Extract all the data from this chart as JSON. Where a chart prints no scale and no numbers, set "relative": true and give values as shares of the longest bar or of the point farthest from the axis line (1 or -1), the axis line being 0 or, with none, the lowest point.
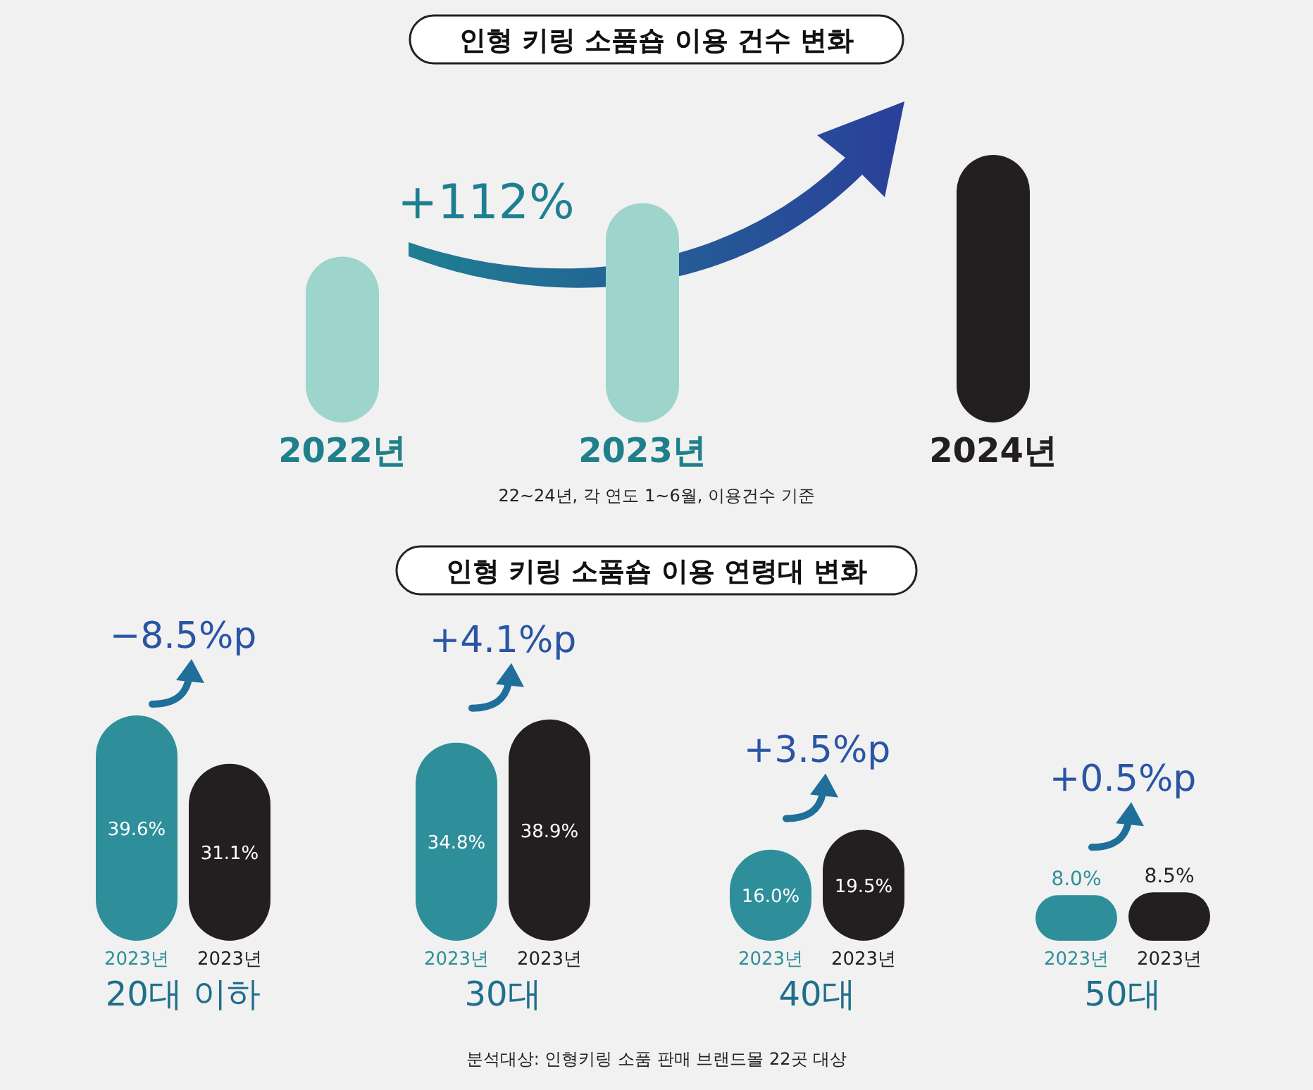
{
  "chart_data": [
    {
      "type": "bar",
      "title": "인형 키링 소품숍 이용 건수 변화",
      "relative": true,
      "categories": [
        "2022년",
        "2023년",
        "2024년"
      ],
      "values": [
        0.62,
        0.82,
        1
      ],
      "colors": [
        "#9dd4cc",
        "#9dd4cc",
        "#231f20"
      ],
      "annotations": [
        "+112%",
        "22~24년, 각 연도 1~6월, 이용건수 기준"
      ]
    },
    {
      "type": "bar",
      "title": "인형 키링 소품숍 이용 연령대 변화",
      "categories": [
        "20대 이하",
        "30대",
        "40대",
        "50대"
      ],
      "series": [
        {
          "name": "2023년",
          "color": "#2e8f9a",
          "values": [
            39.6,
            34.8,
            16.0,
            8.0
          ],
          "value_labels": [
            "39.6%",
            "34.8%",
            "16.0%",
            "8.0%"
          ]
        },
        {
          "name": "2023년",
          "color": "#231f20",
          "values": [
            31.1,
            38.9,
            19.5,
            8.5
          ],
          "value_labels": [
            "31.1%",
            "38.9%",
            "19.5%",
            "8.5%"
          ]
        }
      ],
      "annotations": [
        "−8.5%p",
        "+4.1%p",
        "+3.5%p",
        "+0.5%p",
        "분석대상: 인형키링 소품 판매 브랜드몰 22곳 대상"
      ]
    }
  ]
}
